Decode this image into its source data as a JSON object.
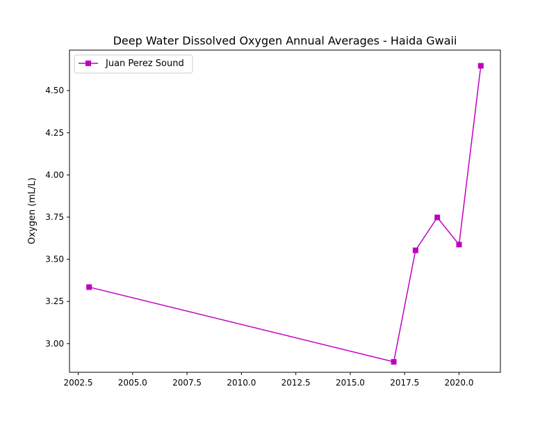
{
  "chart_data": {
    "type": "line",
    "title": "Deep Water Dissolved Oxygen Annual Averages - Haida Gwaii",
    "xlabel": "",
    "ylabel": "Oxygen (mL/L)",
    "xlim": [
      2002.1,
      2021.9
    ],
    "ylim": [
      2.83,
      4.74
    ],
    "x_ticks": [
      2002.5,
      2005.0,
      2007.5,
      2010.0,
      2012.5,
      2015.0,
      2017.5,
      2020.0
    ],
    "x_tick_labels": [
      "2002.5",
      "2005.0",
      "2007.5",
      "2010.0",
      "2012.5",
      "2015.0",
      "2017.5",
      "2020.0"
    ],
    "y_ticks": [
      3.0,
      3.25,
      3.5,
      3.75,
      4.0,
      4.25,
      4.5
    ],
    "y_tick_labels": [
      "3.00",
      "3.25",
      "3.50",
      "3.75",
      "4.00",
      "4.25",
      "4.50"
    ],
    "grid": false,
    "legend_position": "upper left",
    "series": [
      {
        "name": "Juan Perez Sound",
        "color": "#bf00bf",
        "marker": "square",
        "x": [
          2003,
          2017,
          2018,
          2019,
          2020,
          2021
        ],
        "y": [
          3.335,
          2.892,
          3.553,
          3.748,
          3.587,
          4.647
        ]
      }
    ]
  }
}
